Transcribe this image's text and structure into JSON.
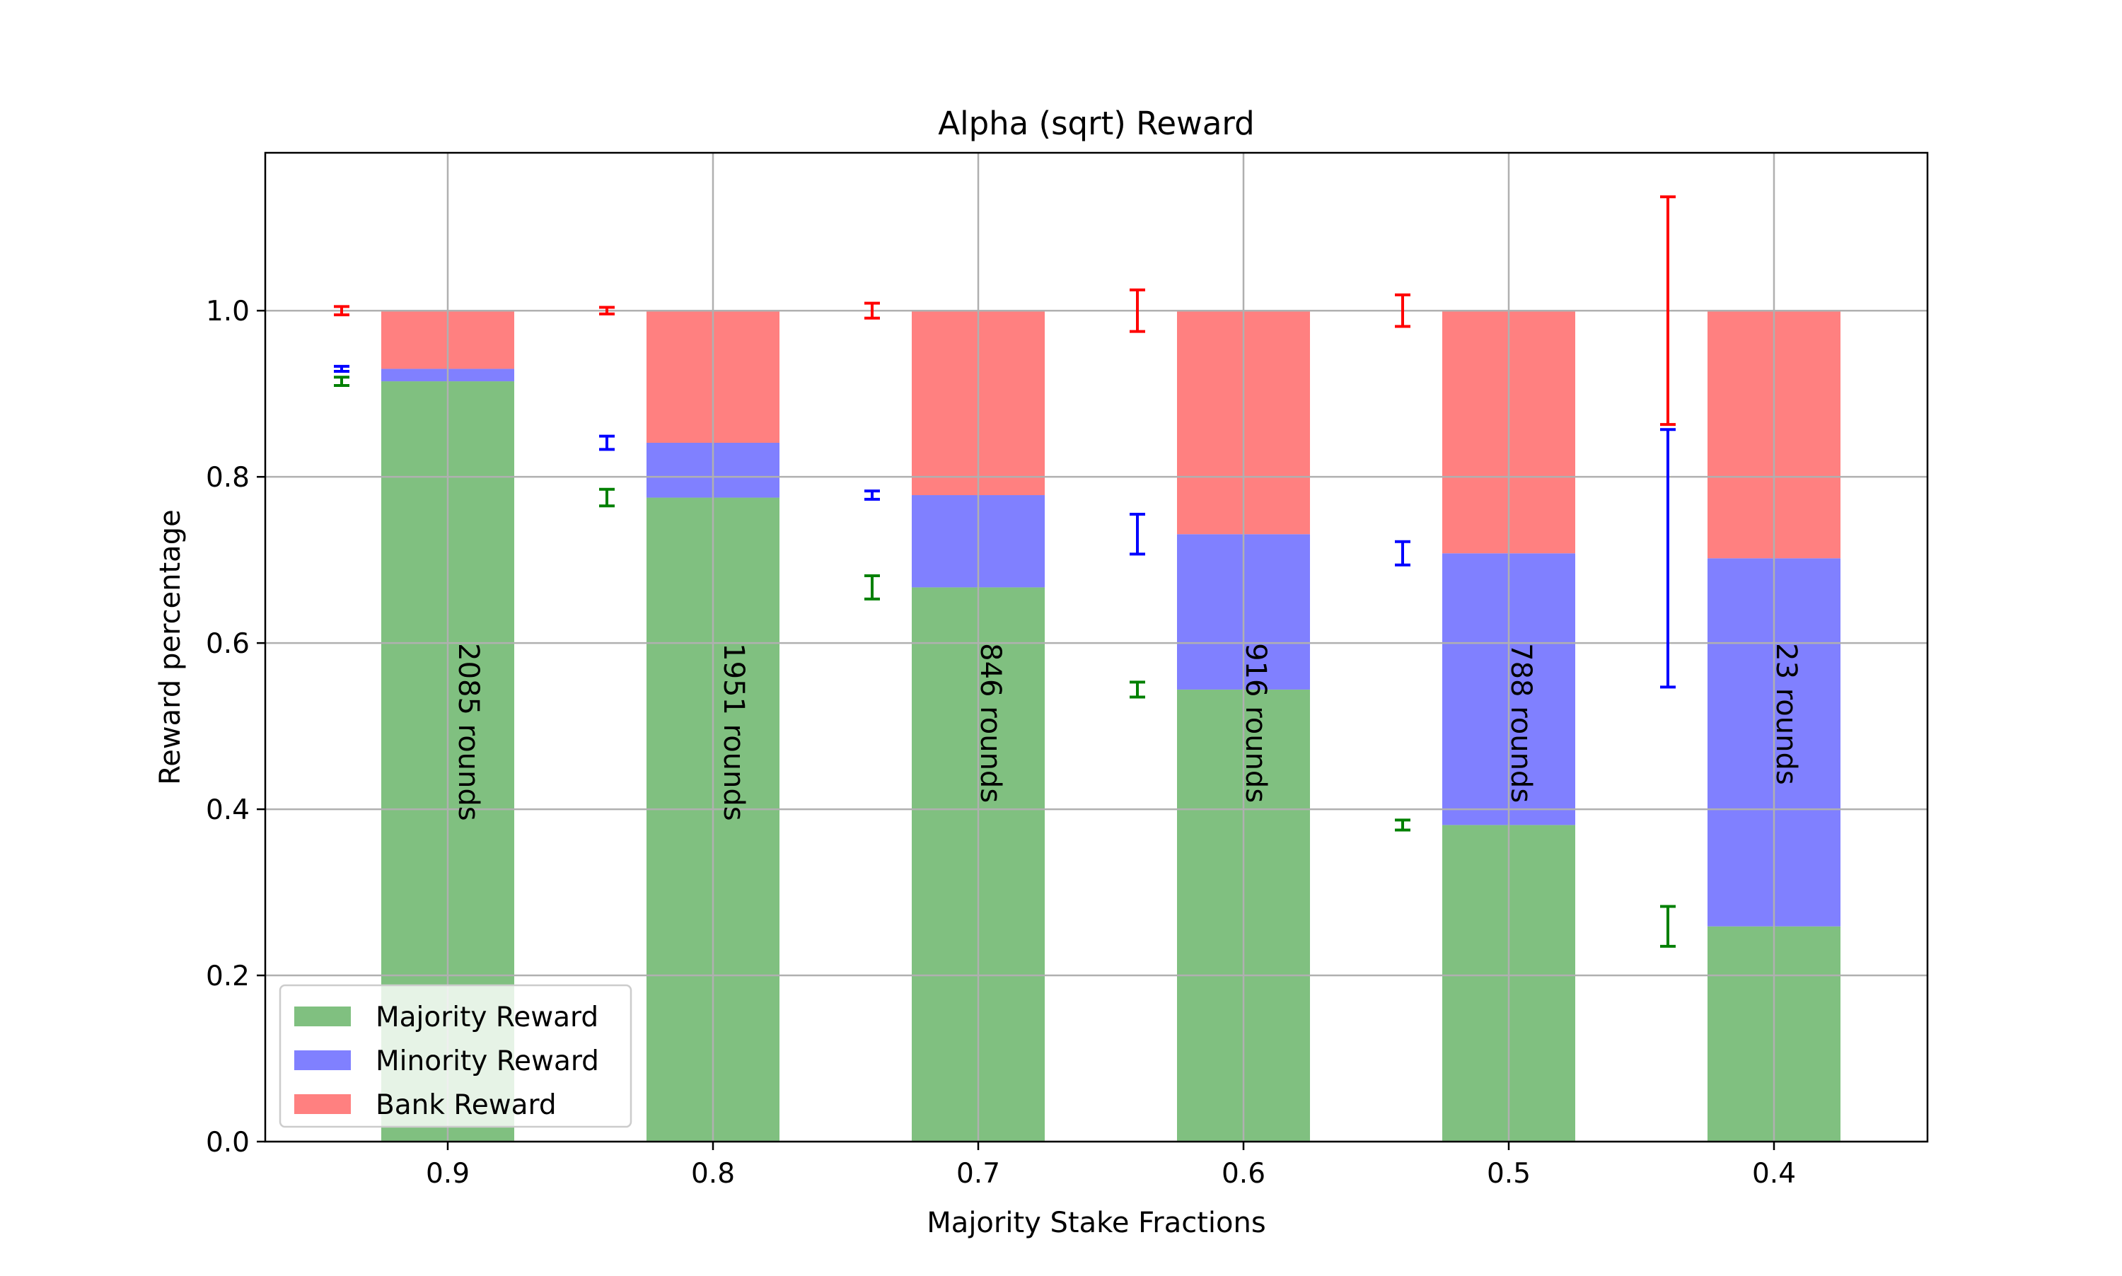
{
  "chart_data": {
    "type": "bar",
    "stacked": true,
    "title": "Alpha (sqrt) Reward",
    "xlabel": "Majority Stake Fractions",
    "ylabel": "Reward percentage",
    "categories": [
      "0.9",
      "0.8",
      "0.7",
      "0.6",
      "0.5",
      "0.4"
    ],
    "ylim": [
      0,
      1.19
    ],
    "yticks": [
      "0.0",
      "0.2",
      "0.4",
      "0.6",
      "0.8",
      "1.0"
    ],
    "grid": true,
    "legend_position": "lower-left",
    "series": [
      {
        "name": "Majority Reward",
        "color": "#80c080",
        "values": [
          0.915,
          0.775,
          0.667,
          0.544,
          0.381,
          0.259
        ]
      },
      {
        "name": "Minority Reward",
        "color": "#8080ff",
        "values": [
          0.015,
          0.066,
          0.111,
          0.187,
          0.327,
          0.443
        ]
      },
      {
        "name": "Bank Reward",
        "color": "#ff8080",
        "values": [
          0.07,
          0.159,
          0.222,
          0.269,
          0.292,
          0.298
        ]
      }
    ],
    "bar_annotations": [
      "2085 rounds",
      "1951 rounds",
      "846 rounds",
      "916 rounds",
      "788 rounds",
      "23 rounds"
    ],
    "error_bars": [
      {
        "name": "Majority Reward",
        "color": "#008000",
        "centers": [
          0.915,
          0.775,
          0.667,
          0.544,
          0.381,
          0.259
        ],
        "errors": [
          0.005,
          0.01,
          0.014,
          0.009,
          0.006,
          0.024
        ]
      },
      {
        "name": "Minority Reward",
        "color": "#0000ff",
        "centers": [
          0.93,
          0.841,
          0.778,
          0.731,
          0.708,
          0.702
        ],
        "errors": [
          0.003,
          0.008,
          0.005,
          0.024,
          0.014,
          0.155
        ]
      },
      {
        "name": "Bank Reward",
        "color": "#ff0000",
        "centers": [
          1.0,
          1.0,
          1.0,
          1.0,
          1.0,
          1.0
        ],
        "errors": [
          0.005,
          0.004,
          0.009,
          0.025,
          0.019,
          0.137
        ]
      }
    ]
  }
}
